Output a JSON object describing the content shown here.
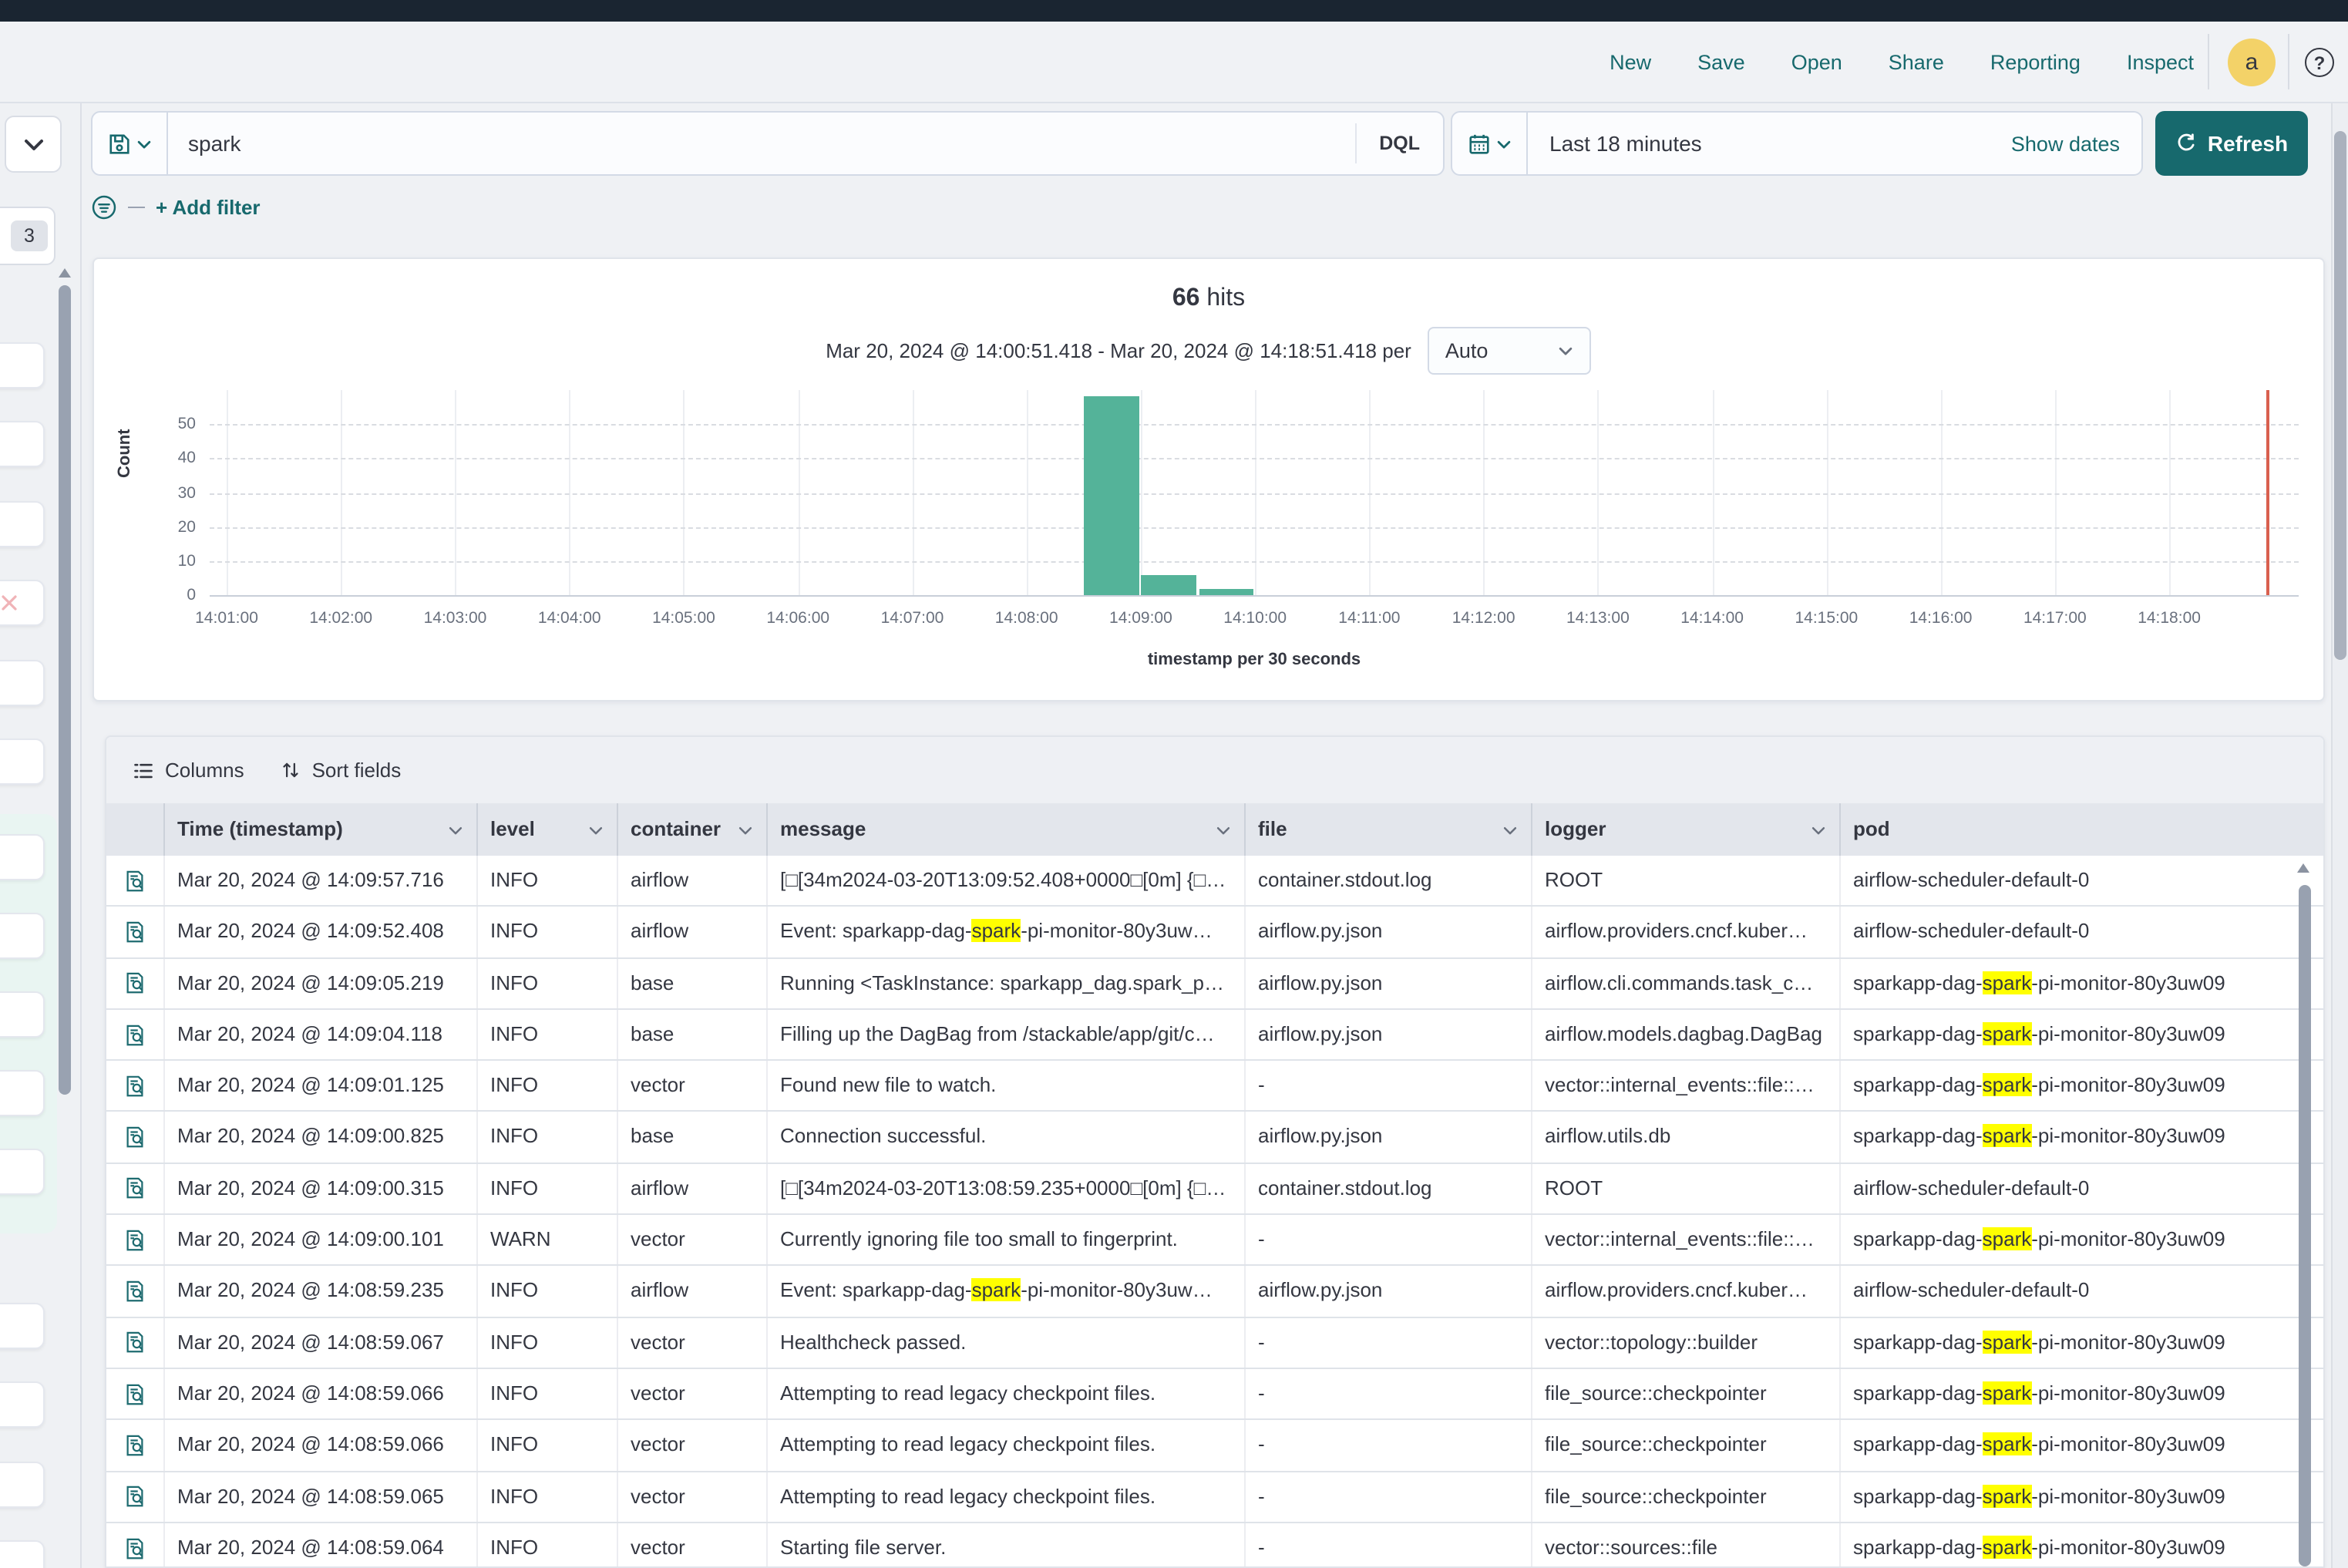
{
  "topnav": {
    "items": [
      "New",
      "Save",
      "Open",
      "Share",
      "Reporting",
      "Inspect"
    ],
    "avatar_initial": "a",
    "help_label": "?"
  },
  "query_bar": {
    "input_value": "spark",
    "language_button": "DQL"
  },
  "timepicker": {
    "value": "Last 18 minutes",
    "show_dates_label": "Show dates",
    "refresh_label": "Refresh"
  },
  "filter_bar": {
    "add_filter_label": "+ Add filter"
  },
  "histogram": {
    "hits_count": "66",
    "hits_label": "hits",
    "subtitle": "Mar 20, 2024 @ 14:00:51.418 - Mar 20, 2024 @ 14:18:51.418 per",
    "interval_select": "Auto",
    "ylabel": "Count",
    "xlabel": "timestamp per 30 seconds"
  },
  "chart_data": {
    "type": "bar",
    "title": "66 hits",
    "ylabel": "Count",
    "xlabel": "timestamp per 30 seconds",
    "time_range_start": "Mar 20, 2024 @ 14:00:51.418",
    "time_range_end": "Mar 20, 2024 @ 14:18:51.418",
    "bucket_interval_seconds": 30,
    "x_ticks": [
      "14:01:00",
      "14:02:00",
      "14:03:00",
      "14:04:00",
      "14:05:00",
      "14:06:00",
      "14:07:00",
      "14:08:00",
      "14:09:00",
      "14:10:00",
      "14:11:00",
      "14:12:00",
      "14:13:00",
      "14:14:00",
      "14:15:00",
      "14:16:00",
      "14:17:00",
      "14:18:00"
    ],
    "y_ticks": [
      0,
      10,
      20,
      30,
      40,
      50
    ],
    "ylim": [
      0,
      60
    ],
    "grid": true,
    "legend": false,
    "buckets": [
      {
        "time": "14:08:30",
        "count": 58
      },
      {
        "time": "14:09:00",
        "count": 6
      },
      {
        "time": "14:09:30",
        "count": 2
      }
    ],
    "current_time_marker": "14:18:51",
    "bar_color": "#54b399",
    "marker_color": "#d9604f"
  },
  "table": {
    "toolbar": {
      "columns_label": "Columns",
      "sort_fields_label": "Sort fields"
    },
    "headers": [
      "Time (timestamp)",
      "level",
      "container",
      "message",
      "file",
      "logger",
      "pod"
    ],
    "highlight_term": "spark",
    "rows": [
      {
        "time": "Mar 20, 2024 @ 14:09:57.716",
        "level": "INFO",
        "container": "airflow",
        "message": "[□[34m2024-03-20T13:09:52.408+0000□[0m] {□…",
        "file": "container.stdout.log",
        "logger": "ROOT",
        "pod": "airflow-scheduler-default-0"
      },
      {
        "time": "Mar 20, 2024 @ 14:09:52.408",
        "level": "INFO",
        "container": "airflow",
        "message": "Event: sparkapp-dag-⟦spark⟧-pi-monitor-80y3uw…",
        "file": "airflow.py.json",
        "logger": "airflow.providers.cncf.kuber…",
        "pod": "airflow-scheduler-default-0"
      },
      {
        "time": "Mar 20, 2024 @ 14:09:05.219",
        "level": "INFO",
        "container": "base",
        "message": "Running <TaskInstance: sparkapp_dag.spark_p…",
        "file": "airflow.py.json",
        "logger": "airflow.cli.commands.task_c…",
        "pod": "sparkapp-dag-⟦spark⟧-pi-monitor-80y3uw09"
      },
      {
        "time": "Mar 20, 2024 @ 14:09:04.118",
        "level": "INFO",
        "container": "base",
        "message": "Filling up the DagBag from /stackable/app/git/c…",
        "file": "airflow.py.json",
        "logger": "airflow.models.dagbag.DagBag",
        "pod": "sparkapp-dag-⟦spark⟧-pi-monitor-80y3uw09"
      },
      {
        "time": "Mar 20, 2024 @ 14:09:01.125",
        "level": "INFO",
        "container": "vector",
        "message": "Found new file to watch.",
        "file": "-",
        "logger": "vector::internal_events::file::…",
        "pod": "sparkapp-dag-⟦spark⟧-pi-monitor-80y3uw09"
      },
      {
        "time": "Mar 20, 2024 @ 14:09:00.825",
        "level": "INFO",
        "container": "base",
        "message": "Connection successful.",
        "file": "airflow.py.json",
        "logger": "airflow.utils.db",
        "pod": "sparkapp-dag-⟦spark⟧-pi-monitor-80y3uw09"
      },
      {
        "time": "Mar 20, 2024 @ 14:09:00.315",
        "level": "INFO",
        "container": "airflow",
        "message": "[□[34m2024-03-20T13:08:59.235+0000□[0m] {□…",
        "file": "container.stdout.log",
        "logger": "ROOT",
        "pod": "airflow-scheduler-default-0"
      },
      {
        "time": "Mar 20, 2024 @ 14:09:00.101",
        "level": "WARN",
        "container": "vector",
        "message": "Currently ignoring file too small to fingerprint.",
        "file": "-",
        "logger": "vector::internal_events::file::…",
        "pod": "sparkapp-dag-⟦spark⟧-pi-monitor-80y3uw09"
      },
      {
        "time": "Mar 20, 2024 @ 14:08:59.235",
        "level": "INFO",
        "container": "airflow",
        "message": "Event: sparkapp-dag-⟦spark⟧-pi-monitor-80y3uw…",
        "file": "airflow.py.json",
        "logger": "airflow.providers.cncf.kuber…",
        "pod": "airflow-scheduler-default-0"
      },
      {
        "time": "Mar 20, 2024 @ 14:08:59.067",
        "level": "INFO",
        "container": "vector",
        "message": "Healthcheck passed.",
        "file": "-",
        "logger": "vector::topology::builder",
        "pod": "sparkapp-dag-⟦spark⟧-pi-monitor-80y3uw09"
      },
      {
        "time": "Mar 20, 2024 @ 14:08:59.066",
        "level": "INFO",
        "container": "vector",
        "message": "Attempting to read legacy checkpoint files.",
        "file": "-",
        "logger": "file_source::checkpointer",
        "pod": "sparkapp-dag-⟦spark⟧-pi-monitor-80y3uw09"
      },
      {
        "time": "Mar 20, 2024 @ 14:08:59.066",
        "level": "INFO",
        "container": "vector",
        "message": "Attempting to read legacy checkpoint files.",
        "file": "-",
        "logger": "file_source::checkpointer",
        "pod": "sparkapp-dag-⟦spark⟧-pi-monitor-80y3uw09"
      },
      {
        "time": "Mar 20, 2024 @ 14:08:59.065",
        "level": "INFO",
        "container": "vector",
        "message": "Attempting to read legacy checkpoint files.",
        "file": "-",
        "logger": "file_source::checkpointer",
        "pod": "sparkapp-dag-⟦spark⟧-pi-monitor-80y3uw09"
      },
      {
        "time": "Mar 20, 2024 @ 14:08:59.064",
        "level": "INFO",
        "container": "vector",
        "message": "Starting file server.",
        "file": "-",
        "logger": "vector::sources::file",
        "pod": "sparkapp-dag-⟦spark⟧-pi-monitor-80y3uw09"
      }
    ]
  },
  "sidebar": {
    "badge_count": "3"
  },
  "colors": {
    "accent": "#17696d",
    "bar": "#54b399",
    "highlight": "#ffff00",
    "marker": "#d9604f",
    "avatar_bg": "#f3d268",
    "topstrip": "#1a2531"
  }
}
